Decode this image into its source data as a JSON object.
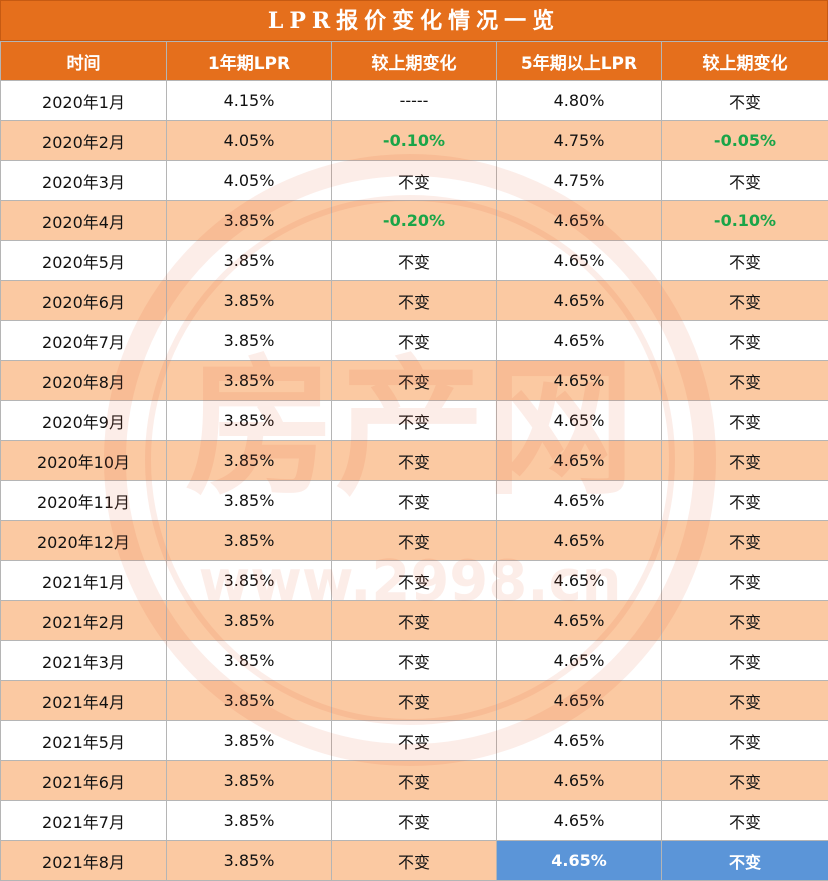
{
  "title": "LPR报价变化情况一览",
  "headers": [
    "时间",
    "1年期LPR",
    "较上期变化",
    "5年期以上LPR",
    "较上期变化"
  ],
  "rows": [
    [
      "2020年1月",
      "4.15%",
      "-----",
      "4.80%",
      "不变"
    ],
    [
      "2020年2月",
      "4.05%",
      "-0.10%",
      "4.75%",
      "-0.05%"
    ],
    [
      "2020年3月",
      "4.05%",
      "不变",
      "4.75%",
      "不变"
    ],
    [
      "2020年4月",
      "3.85%",
      "-0.20%",
      "4.65%",
      "-0.10%"
    ],
    [
      "2020年5月",
      "3.85%",
      "不变",
      "4.65%",
      "不变"
    ],
    [
      "2020年6月",
      "3.85%",
      "不变",
      "4.65%",
      "不变"
    ],
    [
      "2020年7月",
      "3.85%",
      "不变",
      "4.65%",
      "不变"
    ],
    [
      "2020年8月",
      "3.85%",
      "不变",
      "4.65%",
      "不变"
    ],
    [
      "2020年9月",
      "3.85%",
      "不变",
      "4.65%",
      "不变"
    ],
    [
      "2020年10月",
      "3.85%",
      "不变",
      "4.65%",
      "不变"
    ],
    [
      "2020年11月",
      "3.85%",
      "不变",
      "4.65%",
      "不变"
    ],
    [
      "2020年12月",
      "3.85%",
      "不变",
      "4.65%",
      "不变"
    ],
    [
      "2021年1月",
      "3.85%",
      "不变",
      "4.65%",
      "不变"
    ],
    [
      "2021年2月",
      "3.85%",
      "不变",
      "4.65%",
      "不变"
    ],
    [
      "2021年3月",
      "3.85%",
      "不变",
      "4.65%",
      "不变"
    ],
    [
      "2021年4月",
      "3.85%",
      "不变",
      "4.65%",
      "不变"
    ],
    [
      "2021年5月",
      "3.85%",
      "不变",
      "4.65%",
      "不变"
    ],
    [
      "2021年6月",
      "3.85%",
      "不变",
      "4.65%",
      "不变"
    ],
    [
      "2021年7月",
      "3.85%",
      "不变",
      "4.65%",
      "不变"
    ],
    [
      "2021年8月",
      "3.85%",
      "不变",
      "4.65%",
      "不变"
    ]
  ],
  "watermark": {
    "text": "www.2998.cn",
    "brand": "房产网"
  },
  "colors": {
    "header_bg": "#e56f1c",
    "stripe_bg": "#fbc9a2",
    "decrease_text": "#1aa548",
    "highlight_bg": "#5b95d8"
  }
}
